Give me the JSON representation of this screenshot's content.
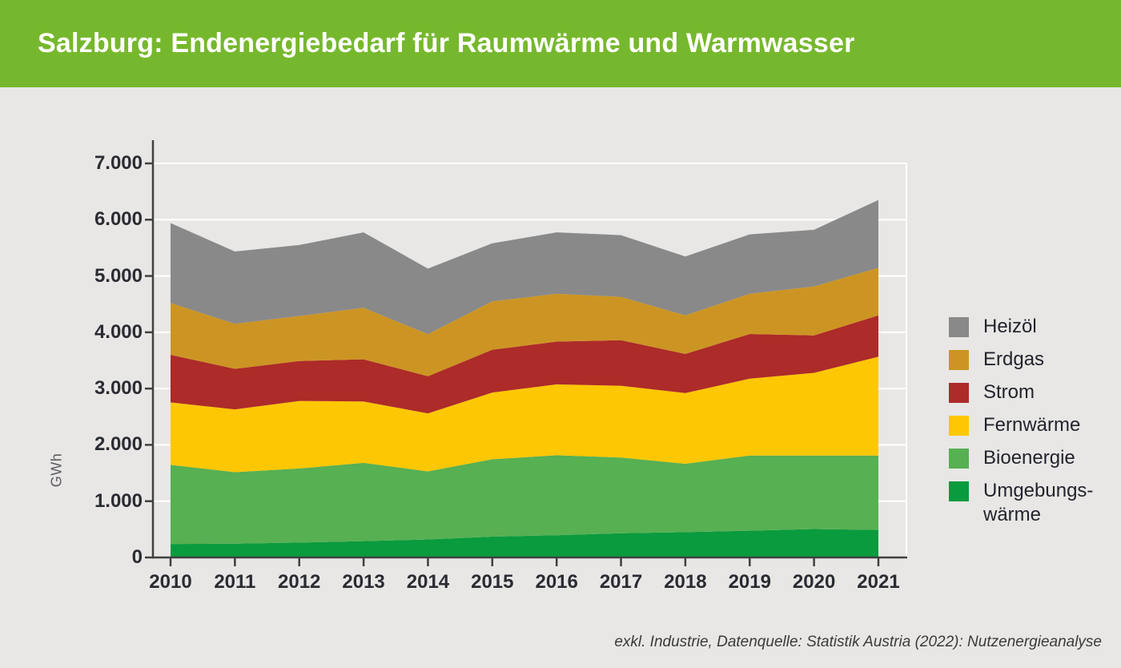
{
  "theme": {
    "header_bg": "#76B82D",
    "page_bg": "#E8E7E5",
    "axis_color": "#404040",
    "grid_color": "#FFFFFF"
  },
  "chart_data": {
    "type": "area",
    "stacked": true,
    "title": "Salzburg: Endenergiebedarf für Raumwärme und Warmwasser",
    "ylabel": "GWh",
    "unit": "GWh",
    "ylim": [
      0,
      7000
    ],
    "grid": "horizontal-white-gridlines",
    "legend_position": "right",
    "x": [
      "2010",
      "2011",
      "2012",
      "2013",
      "2014",
      "2015",
      "2016",
      "2017",
      "2018",
      "2019",
      "2020",
      "2021"
    ],
    "y_ticks": [
      0,
      1000,
      2000,
      3000,
      4000,
      5000,
      6000,
      7000
    ],
    "y_tick_labels": [
      "0",
      "1.000",
      "2.000",
      "3.000",
      "4.000",
      "5.000",
      "6.000",
      "7.000"
    ],
    "series": [
      {
        "name": "Umgebungswärme",
        "color": "#0A9B3E",
        "values": [
          240,
          245,
          265,
          290,
          320,
          370,
          395,
          430,
          450,
          475,
          505,
          490
        ]
      },
      {
        "name": "Bioenergie",
        "color": "#57B052",
        "values": [
          1405,
          1270,
          1315,
          1390,
          1210,
          1375,
          1420,
          1345,
          1215,
          1335,
          1305,
          1320
        ]
      },
      {
        "name": "Fernwärme",
        "color": "#FEC704",
        "values": [
          1110,
          1115,
          1200,
          1090,
          1030,
          1185,
          1260,
          1275,
          1255,
          1365,
          1470,
          1755
        ]
      },
      {
        "name": "Strom",
        "color": "#AD2B28",
        "values": [
          845,
          720,
          710,
          750,
          660,
          760,
          760,
          810,
          695,
          795,
          665,
          735
        ]
      },
      {
        "name": "Erdgas",
        "color": "#CC9523",
        "values": [
          920,
          800,
          800,
          915,
          745,
          860,
          850,
          770,
          685,
          715,
          870,
          845
        ]
      },
      {
        "name": "Heizöl",
        "color": "#898989",
        "values": [
          1420,
          1285,
          1260,
          1340,
          1165,
          1030,
          1090,
          1095,
          1045,
          1055,
          1005,
          1205
        ]
      }
    ],
    "totals": [
      5940,
      5435,
      5550,
      5775,
      5130,
      5580,
      5775,
      5725,
      5345,
      5740,
      5820,
      6350
    ]
  },
  "legend": {
    "items": [
      {
        "label": "Heizöl",
        "series": "Heizöl"
      },
      {
        "label": "Erdgas",
        "series": "Erdgas"
      },
      {
        "label": "Strom",
        "series": "Strom"
      },
      {
        "label": "Fernwärme",
        "series": "Fernwärme"
      },
      {
        "label": "Bioenergie",
        "series": "Bioenergie"
      },
      {
        "label": "Umgebungs-\nwärme",
        "series": "Umgebungswärme"
      }
    ]
  },
  "footer": {
    "note": "exkl. Industrie, Datenquelle: Statistik Austria (2022): Nutzenergieanalyse"
  }
}
